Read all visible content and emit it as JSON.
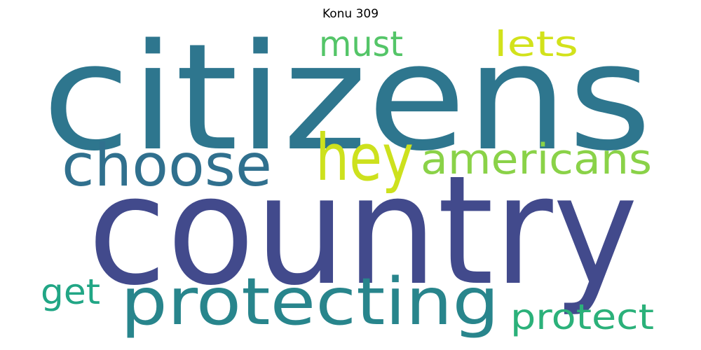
{
  "title": "Konu 309",
  "words": [
    {
      "text": "citizens",
      "color": "#2e768e"
    },
    {
      "text": "country",
      "color": "#424a8c"
    },
    {
      "text": "protecting",
      "color": "#28858c"
    },
    {
      "text": "choose",
      "color": "#30708e"
    },
    {
      "text": "hey",
      "color": "#cde11d"
    },
    {
      "text": "americans",
      "color": "#8ad248"
    },
    {
      "text": "must",
      "color": "#54c568"
    },
    {
      "text": "lets",
      "color": "#d2e21b"
    },
    {
      "text": "get",
      "color": "#21a685"
    },
    {
      "text": "protect",
      "color": "#2bb17a"
    }
  ]
}
